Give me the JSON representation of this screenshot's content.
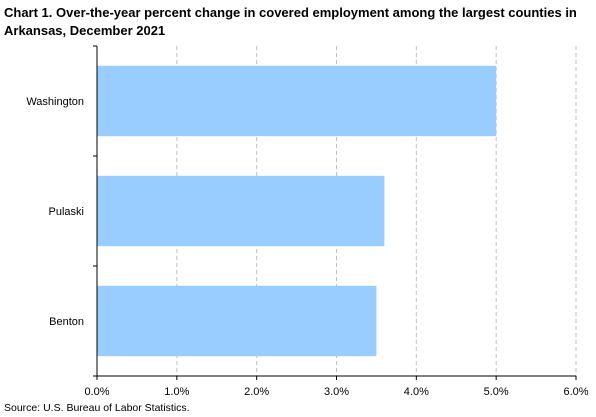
{
  "title": "Chart 1.  Over-the-year percent change in covered employment among the largest counties in Arkansas, December 2021",
  "source": "Source: U.S. Bureau of Labor Statistics.",
  "colors": {
    "bar": "#99ccff",
    "axis": "#000000",
    "grid": "#bfbfbf"
  },
  "chart_data": {
    "type": "bar",
    "orientation": "horizontal",
    "title": "Chart 1.  Over-the-year percent change in covered employment among the largest counties in Arkansas, December 2021",
    "categories": [
      "Washington",
      "Pulaski",
      "Benton"
    ],
    "values": [
      5.0,
      3.6,
      3.5
    ],
    "xlabel": "",
    "ylabel": "",
    "xlim": [
      0,
      6
    ],
    "xticks": [
      "0.0%",
      "1.0%",
      "2.0%",
      "3.0%",
      "4.0%",
      "5.0%",
      "6.0%"
    ],
    "grid": "vertical dashed",
    "legend": "none"
  }
}
